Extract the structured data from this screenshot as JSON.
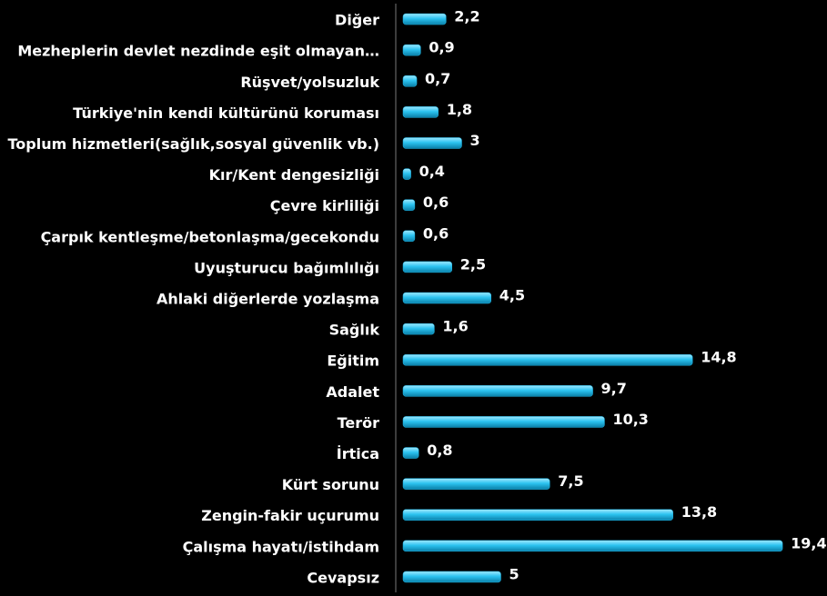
{
  "chart_data": {
    "type": "bar",
    "orientation": "horizontal",
    "categories": [
      "Diğer",
      "Mezheplerin devlet nezdinde eşit olmayan…",
      "Rüşvet/yolsuzluk",
      "Türkiye'nin kendi kültürünü koruması",
      "Toplum hizmetleri(sağlık,sosyal güvenlik vb.)",
      "Kır/Kent dengesizliği",
      "Çevre kirliliği",
      "Çarpık kentleşme/betonlaşma/gecekondu",
      "Uyuşturucu bağımlılığı",
      "Ahlaki diğerlerde yozlaşma",
      "Sağlık",
      "Eğitim",
      "Adalet",
      "Terör",
      "İrtica",
      "Kürt sorunu",
      "Zengin-fakir uçurumu",
      "Çalışma hayatı/istihdam",
      "Cevapsız"
    ],
    "values": [
      2.2,
      0.9,
      0.7,
      1.8,
      3,
      0.4,
      0.6,
      0.6,
      2.5,
      4.5,
      1.6,
      14.8,
      9.7,
      10.3,
      0.8,
      7.5,
      13.8,
      19.4,
      5
    ],
    "value_labels": [
      "2,2",
      "0,9",
      "0,7",
      "1,8",
      "3",
      "0,4",
      "0,6",
      "0,6",
      "2,5",
      "4,5",
      "1,6",
      "14,8",
      "9,7",
      "10,3",
      "0,8",
      "7,5",
      "13,8",
      "19,4",
      "5"
    ],
    "color": "#1fb4e4",
    "xlim": [
      0,
      20
    ]
  }
}
